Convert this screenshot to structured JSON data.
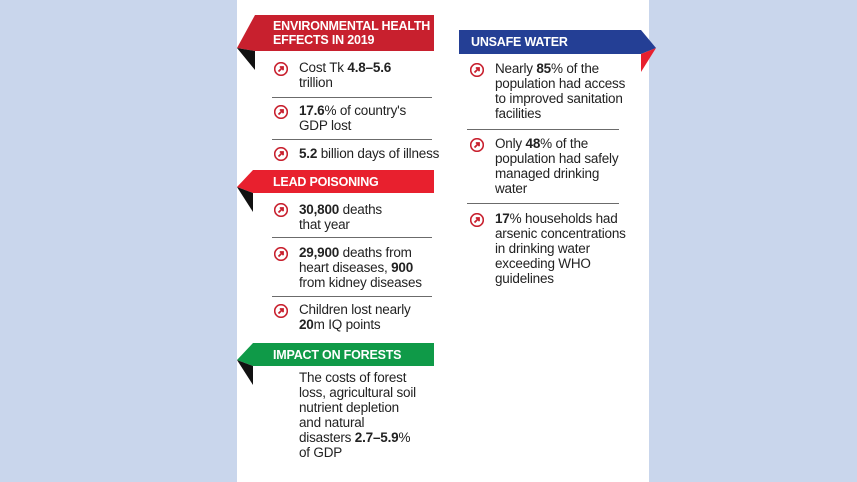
{
  "sections": {
    "env": {
      "title_line1": "ENVIRONMENTAL HEALTH",
      "title_line2": "EFFECTS IN 2019",
      "color": "#c8202e",
      "items": [
        {
          "pre": "Cost Tk ",
          "bold": "4.8–5.6",
          "post": "",
          "line2": "trillion"
        },
        {
          "pre": "",
          "bold": "17.6",
          "post": "% of country's",
          "line2": "GDP lost"
        },
        {
          "pre": "",
          "bold": "5.2",
          "post": " billion days of illness",
          "line2": ""
        }
      ]
    },
    "lead": {
      "title": "LEAD POISONING",
      "color": "#e8202e",
      "items": [
        {
          "pre": "",
          "bold": "30,800",
          "post": " deaths",
          "line2": "that year"
        },
        {
          "pre": "",
          "bold": "29,900",
          "post": " deaths from",
          "line2_pre": "heart diseases, ",
          "line2_bold": "900",
          "line3": "from kidney diseases"
        },
        {
          "pre": "Children lost nearly",
          "line2_bold": "20",
          "line2_post": "m IQ points"
        }
      ]
    },
    "forest": {
      "title": "IMPACT ON FORESTS",
      "color": "#0f9a48",
      "lines": [
        "The costs of forest",
        "loss, agricultural soil",
        "nutrient depletion",
        "and natural"
      ],
      "last_pre": "disasters ",
      "last_bold": "2.7–5.9",
      "last_post": "%",
      "final": "of GDP"
    },
    "water": {
      "title": "UNSAFE WATER",
      "color": "#243f95",
      "accent": "#e8202e",
      "items": [
        {
          "l1_pre": "Nearly ",
          "l1_bold": "85",
          "l1_post": "% of the",
          "l2": "population had access",
          "l3": "to improved sanitation",
          "l4": "facilities"
        },
        {
          "l1_pre": "Only ",
          "l1_bold": "48",
          "l1_post": "% of the",
          "l2": "population had safely",
          "l3": "managed drinking",
          "l4": "water"
        },
        {
          "l1_bold": "17",
          "l1_post": "% households had",
          "l2": "arsenic concentrations",
          "l3": "in drinking water",
          "l4": "exceeding WHO",
          "l5": "guidelines"
        }
      ]
    }
  },
  "icons": {
    "bullet": "arrow-circle-icon"
  }
}
